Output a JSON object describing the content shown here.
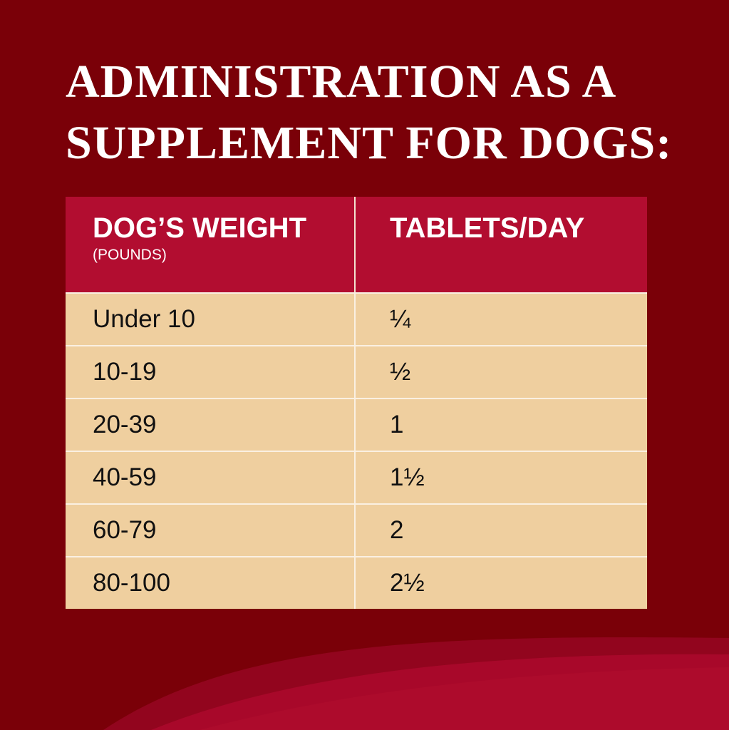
{
  "title_lines": [
    "ADMINISTRATION AS A",
    "SUPPLEMENT FOR DOGS:"
  ],
  "table": {
    "headers": [
      {
        "main": "DOG’S WEIGHT",
        "sub": "(POUNDS)"
      },
      {
        "main": "TABLETS/DAY",
        "sub": ""
      }
    ],
    "rows": [
      [
        "Under 10",
        "¼"
      ],
      [
        "10-19",
        "½"
      ],
      [
        "20-39",
        "1"
      ],
      [
        "40-59",
        "1½"
      ],
      [
        "60-79",
        "2"
      ],
      [
        "80-100",
        "2½"
      ]
    ]
  },
  "colors": {
    "background": "#7a0008",
    "header": "#b20d30",
    "cell": "#efcf9f",
    "wave_1": "#92051e",
    "wave_2": "#a8082a"
  }
}
